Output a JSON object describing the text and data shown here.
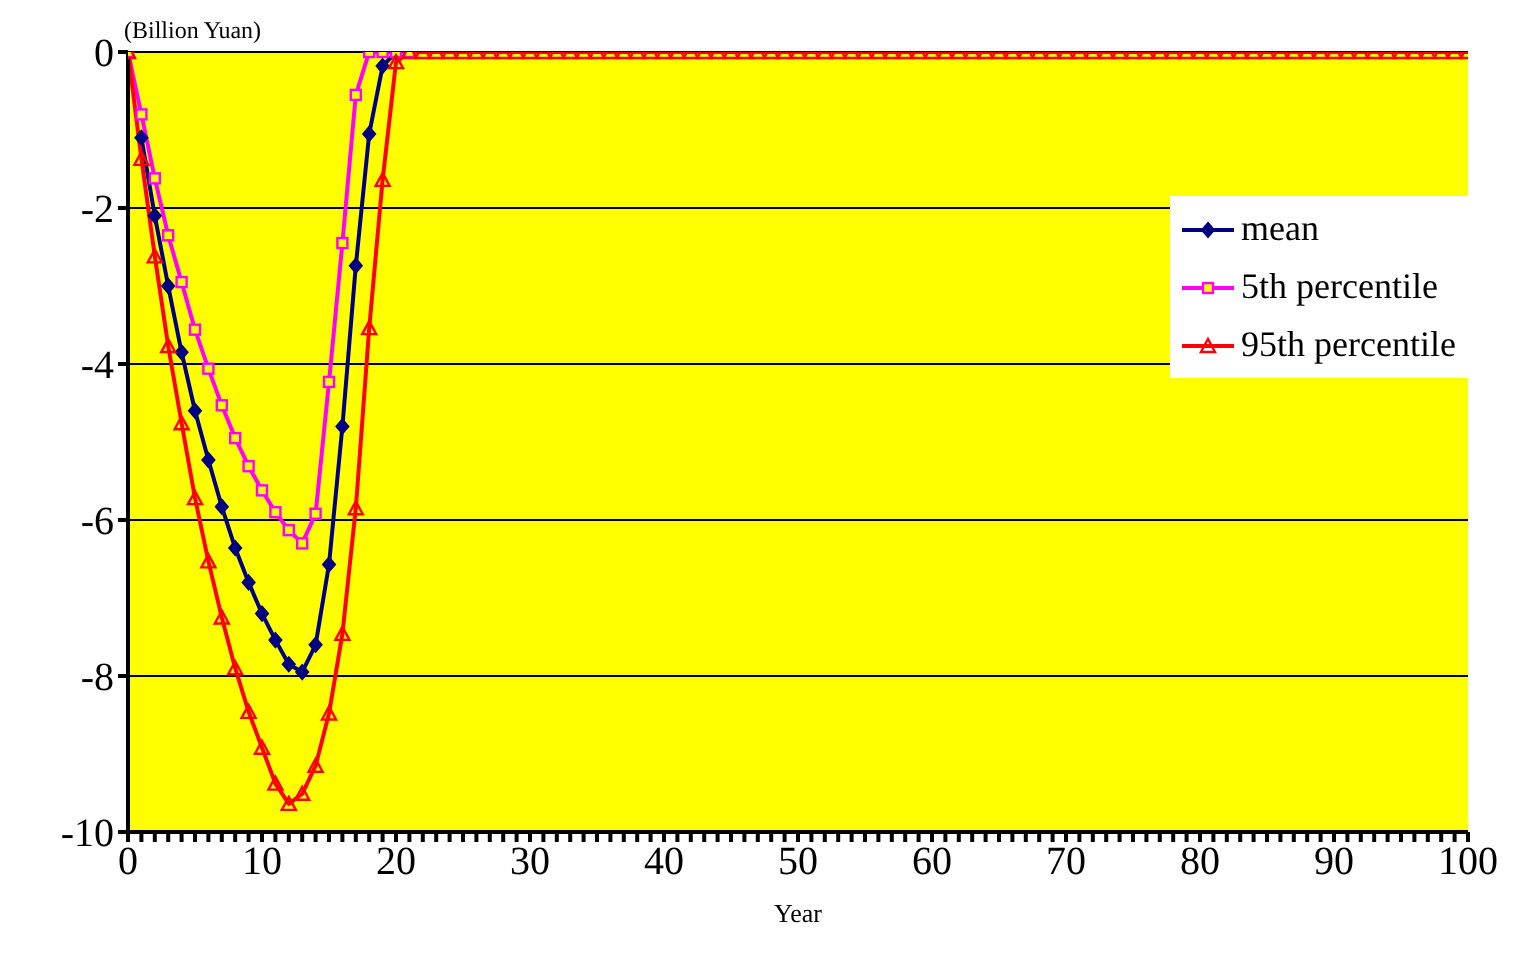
{
  "chart_data": {
    "type": "line",
    "ylabel": "(Billion Yuan)",
    "xlabel": "Year",
    "x": [
      0,
      1,
      2,
      3,
      4,
      5,
      6,
      7,
      8,
      9,
      10,
      11,
      12,
      13,
      14,
      15,
      16,
      17,
      18,
      19,
      20,
      21,
      22,
      23,
      24,
      25,
      26,
      27,
      28,
      29,
      30,
      31,
      32,
      33,
      34,
      35,
      36,
      37,
      38,
      39,
      40,
      41,
      42,
      43,
      44,
      45,
      46,
      47,
      48,
      49,
      50,
      51,
      52,
      53,
      54,
      55,
      56,
      57,
      58,
      59,
      60,
      61,
      62,
      63,
      64,
      65,
      66,
      67,
      68,
      69,
      70,
      71,
      72,
      73,
      74,
      75,
      76,
      77,
      78,
      79,
      80,
      81,
      82,
      83,
      84,
      85,
      86,
      87,
      88,
      89,
      90,
      91,
      92,
      93,
      94,
      95,
      96,
      97,
      98,
      99,
      100
    ],
    "series": [
      {
        "name": "mean",
        "color": "#000080",
        "marker": "diamond",
        "values": [
          null,
          -1.1,
          -2.1,
          -3.0,
          -3.85,
          -4.6,
          -5.23,
          -5.83,
          -6.36,
          -6.8,
          -7.2,
          -7.54,
          -7.85,
          -7.95,
          -7.6,
          -6.57,
          -4.8,
          -2.74,
          -1.05,
          -0.18,
          0,
          null,
          null,
          null,
          null,
          null,
          null,
          null,
          null,
          null,
          null,
          null,
          null,
          null,
          null,
          null,
          null,
          null,
          null,
          null,
          null,
          null,
          null,
          null,
          null,
          null,
          null,
          null,
          null,
          null,
          null,
          null,
          null,
          null,
          null,
          null,
          null,
          null,
          null,
          null,
          null,
          null,
          null,
          null,
          null,
          null,
          null,
          null,
          null,
          null,
          null,
          null,
          null,
          null,
          null,
          null,
          null,
          null,
          null,
          null,
          null,
          null,
          null,
          null,
          null,
          null,
          null,
          null,
          null,
          null,
          null,
          null,
          null,
          null,
          null,
          null,
          null,
          null,
          null,
          null,
          null
        ]
      },
      {
        "name": "5th percentile",
        "color": "#ff00ff",
        "marker": "square",
        "values": [
          0,
          -0.8,
          -1.62,
          -2.35,
          -2.95,
          -3.56,
          -4.06,
          -4.53,
          -4.95,
          -5.31,
          -5.62,
          -5.9,
          -6.13,
          -6.3,
          -5.92,
          -4.23,
          -2.45,
          -0.55,
          0,
          0,
          0,
          0,
          null,
          null,
          null,
          null,
          null,
          null,
          null,
          null,
          null,
          null,
          null,
          null,
          null,
          null,
          null,
          null,
          null,
          null,
          null,
          null,
          null,
          null,
          null,
          null,
          null,
          null,
          null,
          null,
          null,
          null,
          null,
          null,
          null,
          null,
          null,
          null,
          null,
          null,
          null,
          null,
          null,
          null,
          null,
          null,
          null,
          null,
          null,
          null,
          null,
          null,
          null,
          null,
          null,
          null,
          null,
          null,
          null,
          null,
          null,
          null,
          null,
          null,
          null,
          null,
          null,
          null,
          null,
          null,
          null,
          null,
          null,
          null,
          null,
          null,
          null,
          null,
          null,
          null,
          null
        ]
      },
      {
        "name": "95th percentile",
        "color": "#ff0000",
        "marker": "triangle",
        "values": [
          0,
          -1.37,
          -2.62,
          -3.77,
          -4.76,
          -5.72,
          -6.53,
          -7.25,
          -7.9,
          -8.46,
          -8.92,
          -9.38,
          -9.64,
          -9.51,
          -9.15,
          -8.48,
          -7.46,
          -5.85,
          -3.54,
          -1.64,
          -0.13,
          0,
          0,
          0,
          0,
          0,
          0,
          0,
          0,
          0,
          0,
          0,
          0,
          0,
          0,
          0,
          0,
          0,
          0,
          0,
          0,
          0,
          0,
          0,
          0,
          0,
          0,
          0,
          0,
          0,
          0,
          0,
          0,
          0,
          0,
          0,
          0,
          0,
          0,
          0,
          0,
          0,
          0,
          0,
          0,
          0,
          0,
          0,
          0,
          0,
          0,
          0,
          0,
          0,
          0,
          0,
          0,
          0,
          0,
          0,
          0,
          0,
          0,
          0,
          0,
          0,
          0,
          0,
          0,
          0,
          0,
          0,
          0,
          0,
          0,
          0,
          0,
          0,
          0,
          0,
          0
        ]
      }
    ],
    "xlim": [
      0,
      100
    ],
    "xticks": [
      0,
      {
        "value": 1,
        "label": null
      },
      {
        "value": 2,
        "label": null
      },
      {
        "value": 3,
        "label": null
      },
      {
        "value": 4,
        "label": null
      },
      {
        "value": 5,
        "label": null
      },
      {
        "value": 6,
        "label": null
      },
      {
        "value": 7,
        "label": null
      },
      {
        "value": 8,
        "label": null
      },
      {
        "value": 9,
        "label": null
      },
      10,
      {
        "value": 11,
        "label": null
      },
      {
        "value": 12,
        "label": null
      },
      {
        "value": 13,
        "label": null
      },
      {
        "value": 14,
        "label": null
      },
      {
        "value": 15,
        "label": null
      },
      {
        "value": 16,
        "label": null
      },
      {
        "value": 17,
        "label": null
      },
      {
        "value": 18,
        "label": null
      },
      {
        "value": 19,
        "label": null
      },
      20,
      {
        "value": 21,
        "label": null
      },
      {
        "value": 22,
        "label": null
      },
      {
        "value": 23,
        "label": null
      },
      {
        "value": 24,
        "label": null
      },
      {
        "value": 25,
        "label": null
      },
      {
        "value": 26,
        "label": null
      },
      {
        "value": 27,
        "label": null
      },
      {
        "value": 28,
        "label": null
      },
      {
        "value": 29,
        "label": null
      },
      30,
      {
        "value": 31,
        "label": null
      },
      {
        "value": 32,
        "label": null
      },
      {
        "value": 33,
        "label": null
      },
      {
        "value": 34,
        "label": null
      },
      {
        "value": 35,
        "label": null
      },
      {
        "value": 36,
        "label": null
      },
      {
        "value": 37,
        "label": null
      },
      {
        "value": 38,
        "label": null
      },
      {
        "value": 39,
        "label": null
      },
      40,
      {
        "value": 41,
        "label": null
      },
      {
        "value": 42,
        "label": null
      },
      {
        "value": 43,
        "label": null
      },
      {
        "value": 44,
        "label": null
      },
      {
        "value": 45,
        "label": null
      },
      {
        "value": 46,
        "label": null
      },
      {
        "value": 47,
        "label": null
      },
      {
        "value": 48,
        "label": null
      },
      {
        "value": 49,
        "label": null
      },
      50,
      {
        "value": 51,
        "label": null
      },
      {
        "value": 52,
        "label": null
      },
      {
        "value": 53,
        "label": null
      },
      {
        "value": 54,
        "label": null
      },
      {
        "value": 55,
        "label": null
      },
      {
        "value": 56,
        "label": null
      },
      {
        "value": 57,
        "label": null
      },
      {
        "value": 58,
        "label": null
      },
      {
        "value": 59,
        "label": null
      },
      60,
      {
        "value": 61,
        "label": null
      },
      {
        "value": 62,
        "label": null
      },
      {
        "value": 63,
        "label": null
      },
      {
        "value": 64,
        "label": null
      },
      {
        "value": 65,
        "label": null
      },
      {
        "value": 66,
        "label": null
      },
      {
        "value": 67,
        "label": null
      },
      {
        "value": 68,
        "label": null
      },
      {
        "value": 69,
        "label": null
      },
      70,
      {
        "value": 71,
        "label": null
      },
      {
        "value": 72,
        "label": null
      },
      {
        "value": 73,
        "label": null
      },
      {
        "value": 74,
        "label": null
      },
      {
        "value": 75,
        "label": null
      },
      {
        "value": 76,
        "label": null
      },
      {
        "value": 77,
        "label": null
      },
      {
        "value": 78,
        "label": null
      },
      {
        "value": 79,
        "label": null
      },
      80,
      {
        "value": 81,
        "label": null
      },
      {
        "value": 82,
        "label": null
      },
      {
        "value": 83,
        "label": null
      },
      {
        "value": 84,
        "label": null
      },
      {
        "value": 85,
        "label": null
      },
      {
        "value": 86,
        "label": null
      },
      {
        "value": 87,
        "label": null
      },
      {
        "value": 88,
        "label": null
      },
      {
        "value": 89,
        "label": null
      },
      90,
      {
        "value": 91,
        "label": null
      },
      {
        "value": 92,
        "label": null
      },
      {
        "value": 93,
        "label": null
      },
      {
        "value": 94,
        "label": null
      },
      {
        "value": 95,
        "label": null
      },
      {
        "value": 96,
        "label": null
      },
      {
        "value": 97,
        "label": null
      },
      {
        "value": 98,
        "label": null
      },
      {
        "value": 99,
        "label": null
      },
      100
    ],
    "ylim": [
      -10,
      0
    ],
    "yticks": [
      0,
      -2,
      -4,
      -6,
      -8,
      -10
    ],
    "grid": "y",
    "legend": "right",
    "line_style": "solid"
  }
}
